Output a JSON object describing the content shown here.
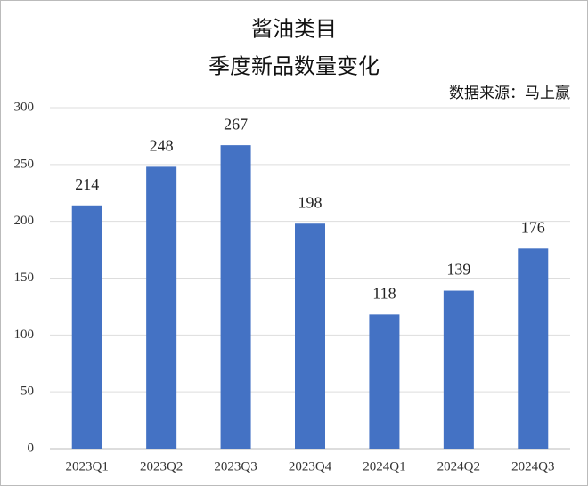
{
  "chart_data": {
    "type": "bar",
    "title": "酱油类目",
    "subtitle": "季度新品数量变化",
    "source": "数据来源：马上赢",
    "categories": [
      "2023Q1",
      "2023Q2",
      "2023Q3",
      "2023Q4",
      "2024Q1",
      "2024Q2",
      "2024Q3"
    ],
    "values": [
      214,
      248,
      267,
      198,
      118,
      139,
      176
    ],
    "color": "#4472c4",
    "ylim": [
      0,
      300
    ],
    "yticks": [
      0,
      50,
      100,
      150,
      200,
      250,
      300
    ],
    "grid": true
  }
}
